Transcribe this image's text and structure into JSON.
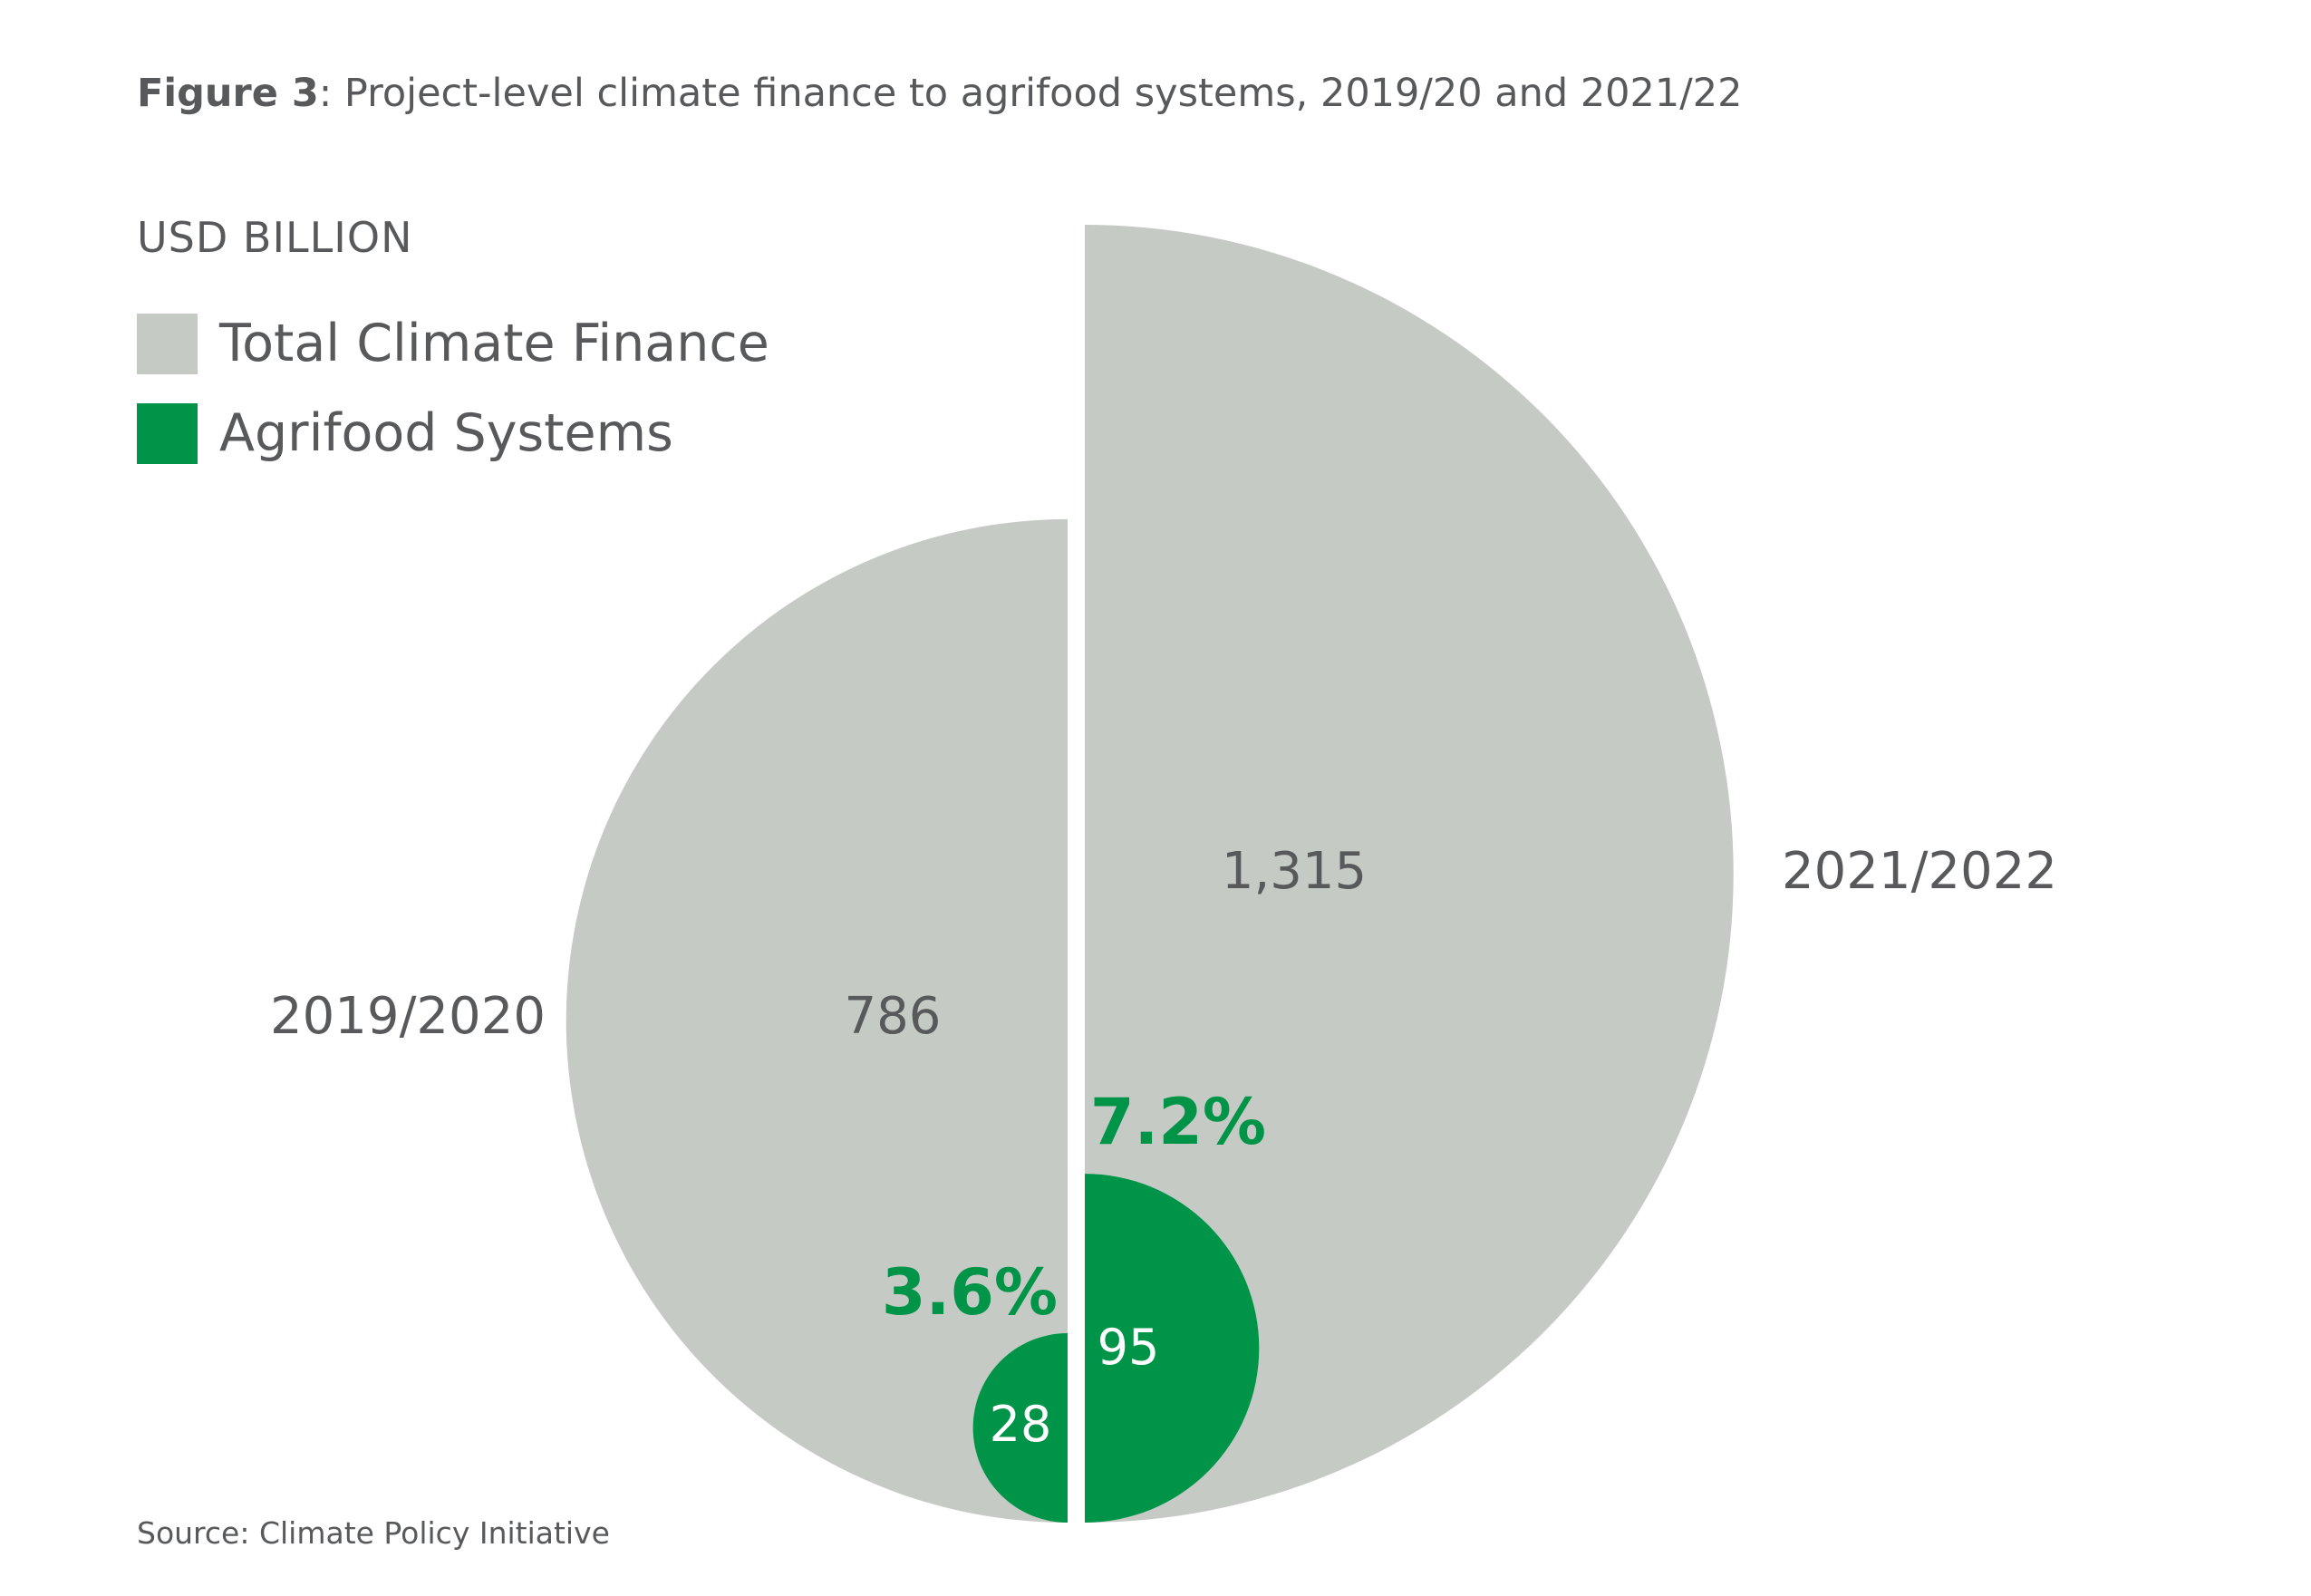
{
  "figure": {
    "label": "Figure 3",
    "title_rest": ": Project-level climate finance to agrifood systems, 2019/20 and 2021/22",
    "source": "Source: Climate Policy Initiative"
  },
  "colors": {
    "total": "#c5cac4",
    "agrifood": "#009448",
    "text": "#58595b"
  },
  "chart_data": {
    "type": "pie",
    "unit_label": "USD BILLION",
    "legend": [
      {
        "label": "Total Climate Finance",
        "color": "#c5cac4"
      },
      {
        "label": "Agrifood Systems",
        "color": "#009448"
      }
    ],
    "series": [
      {
        "period": "2019/2020",
        "total": 786,
        "total_label": "786",
        "agrifood": 28,
        "agrifood_label": "28",
        "share_label": "3.6%"
      },
      {
        "period": "2021/2022",
        "total": 1315,
        "total_label": "1,315",
        "agrifood": 95,
        "agrifood_label": "95",
        "share_label": "7.2%"
      }
    ]
  }
}
